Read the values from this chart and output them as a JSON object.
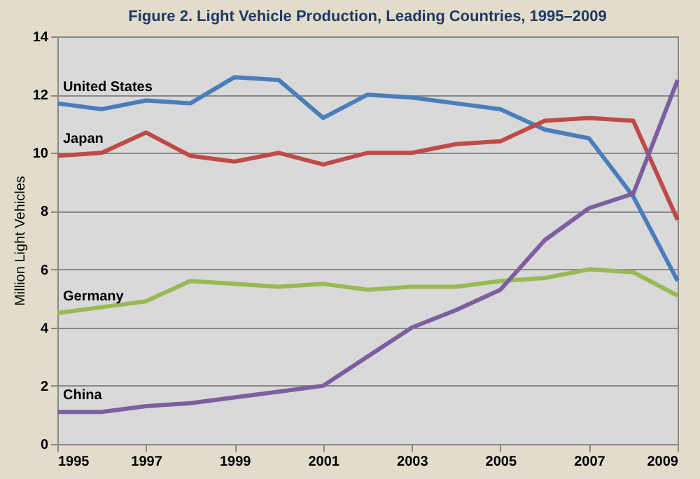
{
  "chart_data": {
    "type": "line",
    "title": "Figure 2. Light Vehicle Production, Leading Countries, 1995–2009",
    "ylabel": "Million Light Vehicles",
    "x": [
      1995,
      1996,
      1997,
      1998,
      1999,
      2000,
      2001,
      2002,
      2003,
      2004,
      2005,
      2006,
      2007,
      2008,
      2009
    ],
    "series": [
      {
        "name": "United States",
        "color": "#4a7ebb",
        "values": [
          11.7,
          11.5,
          11.8,
          11.7,
          12.6,
          12.5,
          11.2,
          12.0,
          11.9,
          11.7,
          11.5,
          10.8,
          10.5,
          8.5,
          5.6
        ]
      },
      {
        "name": "Japan",
        "color": "#be4b48",
        "values": [
          9.9,
          10.0,
          10.7,
          9.9,
          9.7,
          10.0,
          9.6,
          10.0,
          10.0,
          10.3,
          10.4,
          11.1,
          11.2,
          11.1,
          7.7
        ]
      },
      {
        "name": "Germany",
        "color": "#98b954",
        "values": [
          4.5,
          4.7,
          4.9,
          5.6,
          5.5,
          5.4,
          5.5,
          5.3,
          5.4,
          5.4,
          5.6,
          5.7,
          6.0,
          5.9,
          5.1
        ]
      },
      {
        "name": "China",
        "color": "#7d5fa0",
        "values": [
          1.1,
          1.1,
          1.3,
          1.4,
          1.6,
          1.8,
          2.0,
          3.0,
          4.0,
          4.6,
          5.3,
          7.0,
          8.1,
          8.6,
          12.5
        ]
      }
    ],
    "xlim": [
      1995,
      2009
    ],
    "xticks": [
      1995,
      1997,
      1999,
      2001,
      2003,
      2005,
      2007,
      2009
    ],
    "ylim": [
      0,
      14
    ],
    "yticks": [
      0,
      2,
      4,
      6,
      8,
      10,
      12,
      14
    ],
    "grid": "y",
    "legend": false,
    "marker": "none",
    "line_style": "solid"
  }
}
